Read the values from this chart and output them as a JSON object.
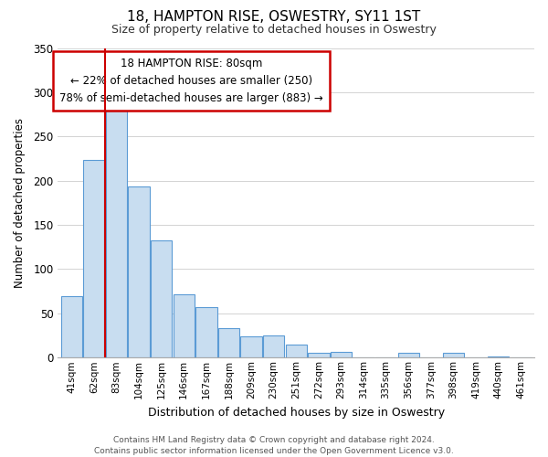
{
  "title": "18, HAMPTON RISE, OSWESTRY, SY11 1ST",
  "subtitle": "Size of property relative to detached houses in Oswestry",
  "xlabel": "Distribution of detached houses by size in Oswestry",
  "ylabel": "Number of detached properties",
  "categories": [
    "41sqm",
    "62sqm",
    "83sqm",
    "104sqm",
    "125sqm",
    "146sqm",
    "167sqm",
    "188sqm",
    "209sqm",
    "230sqm",
    "251sqm",
    "272sqm",
    "293sqm",
    "314sqm",
    "335sqm",
    "356sqm",
    "377sqm",
    "398sqm",
    "419sqm",
    "440sqm",
    "461sqm"
  ],
  "values": [
    70,
    223,
    280,
    193,
    133,
    72,
    57,
    33,
    24,
    25,
    15,
    5,
    6,
    0,
    0,
    5,
    0,
    5,
    0,
    1,
    0
  ],
  "bar_color": "#c8ddf0",
  "bar_edge_color": "#5b9bd5",
  "highlight_color": "#cc0000",
  "ylim": [
    0,
    350
  ],
  "yticks": [
    0,
    50,
    100,
    150,
    200,
    250,
    300,
    350
  ],
  "annotation_title": "18 HAMPTON RISE: 80sqm",
  "annotation_line1": "← 22% of detached houses are smaller (250)",
  "annotation_line2": "78% of semi-detached houses are larger (883) →",
  "footer_line1": "Contains HM Land Registry data © Crown copyright and database right 2024.",
  "footer_line2": "Contains public sector information licensed under the Open Government Licence v3.0.",
  "background_color": "#ffffff",
  "grid_color": "#cccccc",
  "red_line_bar_index": 2
}
